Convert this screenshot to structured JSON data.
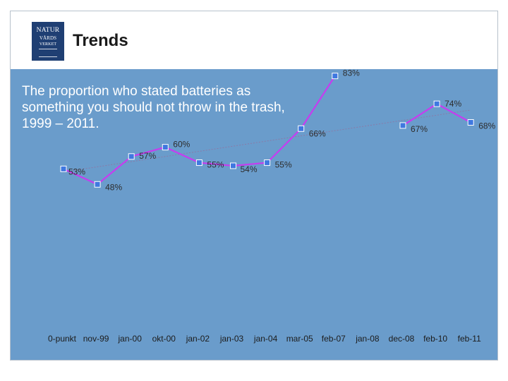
{
  "header": {
    "title": "Trends",
    "logo": {
      "line1": "NATUR",
      "line2": "VÅRDS",
      "line3": "VERKET"
    }
  },
  "colors": {
    "background": "#6a9ccb",
    "series_line": "#c63cf0",
    "marker": "#3f78e0",
    "trendline": "#8a7aa8"
  },
  "chart_data": {
    "type": "line",
    "title": "The proportion who stated batteries as something you should not throw in the trash, 1999 – 2011.",
    "categories": [
      "0-punkt",
      "nov-99",
      "jan-00",
      "okt-00",
      "jan-02",
      "jan-03",
      "jan-04",
      "mar-05",
      "feb-07",
      "jan-08",
      "dec-08",
      "feb-10",
      "feb-11"
    ],
    "series": [
      {
        "name": "Batteries",
        "values": [
          53,
          48,
          57,
          60,
          55,
          54,
          55,
          66,
          83,
          null,
          67,
          74,
          68
        ],
        "labels": [
          "53%",
          "48%",
          "57%",
          "60%",
          "55%",
          "54%",
          "55%",
          "66%",
          "83%",
          null,
          "67%",
          "74%",
          "68%"
        ]
      }
    ],
    "trendline": {
      "type": "linear",
      "start": 52,
      "end": 72
    },
    "ylim": [
      0,
      100
    ],
    "xlabel": "",
    "ylabel": "",
    "grid": false,
    "legend": "none"
  }
}
